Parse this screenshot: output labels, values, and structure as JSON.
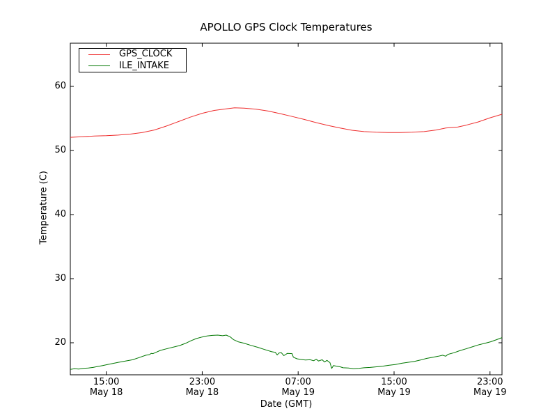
{
  "chart_data": {
    "type": "line",
    "title": "APOLLO GPS Clock Temperatures",
    "xlabel": "Date (GMT)",
    "ylabel": "Temperature (C)",
    "x_unit_note": "x values are hours after May 18 12:00 GMT",
    "xlim": [
      0,
      36
    ],
    "ylim": [
      15,
      66.74
    ],
    "grid": false,
    "legend_position": "upper left",
    "x_ticks": [
      {
        "pos": 3,
        "time": "15:00",
        "date": "May 18"
      },
      {
        "pos": 11,
        "time": "23:00",
        "date": "May 18"
      },
      {
        "pos": 19,
        "time": "07:00",
        "date": "May 19"
      },
      {
        "pos": 27,
        "time": "15:00",
        "date": "May 19"
      },
      {
        "pos": 35,
        "time": "23:00",
        "date": "May 19"
      }
    ],
    "y_ticks": [
      20,
      30,
      40,
      50,
      60
    ],
    "series": [
      {
        "name": "GPS_CLOCK",
        "color": "#ee2c2c",
        "points": [
          [
            0,
            52.05
          ],
          [
            1,
            52.15
          ],
          [
            2,
            52.25
          ],
          [
            3,
            52.3
          ],
          [
            4,
            52.4
          ],
          [
            5,
            52.55
          ],
          [
            6,
            52.8
          ],
          [
            7,
            53.2
          ],
          [
            8,
            53.8
          ],
          [
            9,
            54.5
          ],
          [
            10,
            55.2
          ],
          [
            11,
            55.8
          ],
          [
            12,
            56.25
          ],
          [
            13,
            56.5
          ],
          [
            13.7,
            56.65
          ],
          [
            14.5,
            56.6
          ],
          [
            15.5,
            56.45
          ],
          [
            16.5,
            56.15
          ],
          [
            17.5,
            55.75
          ],
          [
            18.5,
            55.3
          ],
          [
            19.5,
            54.85
          ],
          [
            20.5,
            54.35
          ],
          [
            21.5,
            53.9
          ],
          [
            22.5,
            53.5
          ],
          [
            23.5,
            53.15
          ],
          [
            24.5,
            52.95
          ],
          [
            25.5,
            52.85
          ],
          [
            26.5,
            52.8
          ],
          [
            27.5,
            52.8
          ],
          [
            28.5,
            52.85
          ],
          [
            29.5,
            52.95
          ],
          [
            30.5,
            53.2
          ],
          [
            31.3,
            53.5
          ],
          [
            31.9,
            53.6
          ],
          [
            32.3,
            53.65
          ],
          [
            33,
            53.95
          ],
          [
            34,
            54.45
          ],
          [
            35,
            55.1
          ],
          [
            36,
            55.65
          ]
        ]
      },
      {
        "name": "ILE_INTAKE",
        "color": "#007700",
        "points": [
          [
            0,
            15.85
          ],
          [
            0.35,
            15.95
          ],
          [
            0.7,
            15.9
          ],
          [
            1.1,
            16.0
          ],
          [
            1.5,
            16.05
          ],
          [
            1.9,
            16.15
          ],
          [
            2.3,
            16.3
          ],
          [
            2.7,
            16.45
          ],
          [
            3.1,
            16.6
          ],
          [
            3.5,
            16.75
          ],
          [
            4.0,
            16.95
          ],
          [
            4.6,
            17.15
          ],
          [
            5.2,
            17.35
          ],
          [
            5.75,
            17.7
          ],
          [
            6.3,
            18.05
          ],
          [
            6.6,
            18.15
          ],
          [
            6.75,
            18.35
          ],
          [
            6.9,
            18.3
          ],
          [
            7.2,
            18.55
          ],
          [
            7.5,
            18.8
          ],
          [
            8.1,
            19.1
          ],
          [
            8.65,
            19.35
          ],
          [
            9.1,
            19.55
          ],
          [
            9.6,
            19.9
          ],
          [
            10.05,
            20.3
          ],
          [
            10.5,
            20.65
          ],
          [
            11.0,
            20.9
          ],
          [
            11.4,
            21.05
          ],
          [
            11.85,
            21.15
          ],
          [
            12.3,
            21.2
          ],
          [
            12.7,
            21.1
          ],
          [
            13.0,
            21.2
          ],
          [
            13.35,
            20.9
          ],
          [
            13.6,
            20.5
          ],
          [
            14.0,
            20.15
          ],
          [
            14.45,
            19.95
          ],
          [
            15.05,
            19.6
          ],
          [
            15.6,
            19.3
          ],
          [
            16.2,
            18.95
          ],
          [
            16.8,
            18.6
          ],
          [
            17.1,
            18.5
          ],
          [
            17.25,
            18.1
          ],
          [
            17.4,
            18.4
          ],
          [
            17.6,
            18.45
          ],
          [
            17.8,
            18.0
          ],
          [
            17.95,
            18.15
          ],
          [
            18.1,
            18.35
          ],
          [
            18.5,
            18.3
          ],
          [
            18.6,
            17.75
          ],
          [
            18.9,
            17.5
          ],
          [
            19.2,
            17.4
          ],
          [
            19.6,
            17.3
          ],
          [
            20.0,
            17.35
          ],
          [
            20.3,
            17.2
          ],
          [
            20.5,
            17.45
          ],
          [
            20.7,
            17.15
          ],
          [
            21.0,
            17.35
          ],
          [
            21.2,
            17.0
          ],
          [
            21.4,
            17.25
          ],
          [
            21.65,
            16.9
          ],
          [
            21.8,
            16.0
          ],
          [
            21.95,
            16.45
          ],
          [
            22.2,
            16.35
          ],
          [
            22.5,
            16.25
          ],
          [
            22.75,
            16.1
          ],
          [
            23.2,
            16.05
          ],
          [
            23.6,
            15.95
          ],
          [
            24.05,
            16.0
          ],
          [
            24.5,
            16.1
          ],
          [
            25.0,
            16.15
          ],
          [
            25.55,
            16.25
          ],
          [
            26.05,
            16.35
          ],
          [
            26.6,
            16.5
          ],
          [
            27.1,
            16.6
          ],
          [
            27.65,
            16.8
          ],
          [
            28.15,
            16.95
          ],
          [
            28.7,
            17.1
          ],
          [
            29.2,
            17.3
          ],
          [
            29.7,
            17.55
          ],
          [
            30.25,
            17.75
          ],
          [
            30.7,
            17.9
          ],
          [
            31.05,
            18.05
          ],
          [
            31.3,
            17.9
          ],
          [
            31.5,
            18.2
          ],
          [
            32.0,
            18.45
          ],
          [
            32.45,
            18.75
          ],
          [
            33.0,
            19.05
          ],
          [
            33.5,
            19.35
          ],
          [
            34.0,
            19.65
          ],
          [
            34.55,
            19.9
          ],
          [
            35.05,
            20.15
          ],
          [
            35.5,
            20.45
          ],
          [
            36.0,
            20.8
          ]
        ]
      }
    ]
  }
}
